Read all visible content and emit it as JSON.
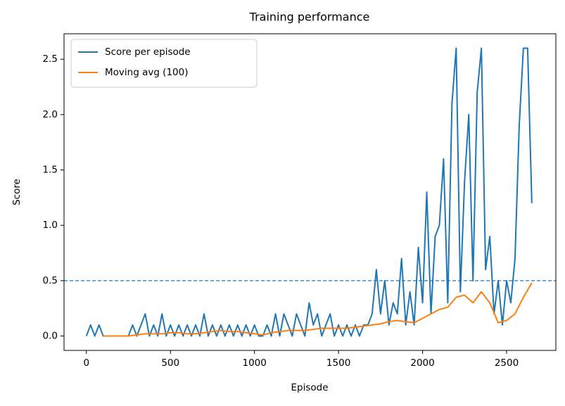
{
  "chart_data": {
    "type": "line",
    "title": "Training performance",
    "x_label": "Episode",
    "y_label": "Score",
    "legend": "upper left",
    "reference_line": {
      "value": 0.5,
      "color": "#1f77b4",
      "style": "dashed"
    },
    "xlim": [
      -133,
      2793
    ],
    "ylim": [
      -0.13,
      2.73
    ],
    "xticks": [
      0,
      500,
      1000,
      1500,
      2000,
      2500
    ],
    "yticks": [
      {
        "value": 0,
        "label": "0.0"
      },
      0.5,
      {
        "value": 1,
        "label": "1.0"
      },
      1.5,
      {
        "value": 2,
        "label": "2.0"
      },
      2.5
    ],
    "series": [
      {
        "name": "Score per episode",
        "color": "#1f77b4",
        "x": [
          0,
          25,
          50,
          75,
          100,
          125,
          150,
          175,
          200,
          225,
          250,
          275,
          300,
          325,
          350,
          375,
          400,
          425,
          450,
          475,
          500,
          525,
          550,
          575,
          600,
          625,
          650,
          675,
          700,
          725,
          750,
          775,
          800,
          825,
          850,
          875,
          900,
          925,
          950,
          975,
          1000,
          1025,
          1050,
          1075,
          1100,
          1125,
          1150,
          1175,
          1200,
          1225,
          1250,
          1275,
          1300,
          1325,
          1350,
          1375,
          1400,
          1425,
          1450,
          1475,
          1500,
          1525,
          1550,
          1575,
          1600,
          1625,
          1650,
          1675,
          1700,
          1725,
          1750,
          1775,
          1800,
          1825,
          1850,
          1875,
          1900,
          1925,
          1950,
          1975,
          2000,
          2025,
          2050,
          2075,
          2100,
          2125,
          2150,
          2175,
          2200,
          2225,
          2250,
          2275,
          2300,
          2325,
          2350,
          2375,
          2400,
          2425,
          2450,
          2475,
          2500,
          2525,
          2550,
          2575,
          2600,
          2625,
          2650
        ],
        "values": [
          0,
          0.1,
          0,
          0.1,
          0,
          0,
          0,
          0,
          0,
          0,
          0,
          0.1,
          0,
          0.1,
          0.2,
          0,
          0.1,
          0,
          0.2,
          0,
          0.1,
          0,
          0.1,
          0,
          0.1,
          0,
          0.1,
          0,
          0.2,
          0,
          0.1,
          0,
          0.1,
          0,
          0.1,
          0,
          0.1,
          0,
          0.1,
          0,
          0.1,
          0,
          0,
          0.1,
          0,
          0.2,
          0,
          0.2,
          0.1,
          0,
          0.2,
          0.1,
          0,
          0.3,
          0.1,
          0.2,
          0,
          0.1,
          0.2,
          0,
          0.1,
          0,
          0.1,
          0,
          0.1,
          0,
          0.1,
          0.1,
          0.2,
          0.6,
          0.2,
          0.5,
          0.1,
          0.3,
          0.2,
          0.7,
          0.1,
          0.4,
          0.1,
          0.8,
          0.3,
          1.3,
          0.2,
          0.9,
          1.0,
          1.6,
          0.3,
          2.1,
          2.6,
          0.4,
          1.4,
          2.0,
          0.5,
          2.2,
          2.6,
          0.6,
          0.9,
          0.2,
          0.5,
          0.1,
          0.5,
          0.3,
          0.7,
          1.9,
          2.6,
          2.6,
          1.2
        ]
      },
      {
        "name": "Moving avg (100)",
        "color": "#ff7f0e",
        "x": [
          100,
          150,
          200,
          250,
          300,
          350,
          400,
          450,
          500,
          550,
          600,
          650,
          700,
          750,
          800,
          850,
          900,
          950,
          1000,
          1050,
          1100,
          1150,
          1200,
          1250,
          1300,
          1350,
          1400,
          1450,
          1500,
          1550,
          1600,
          1650,
          1700,
          1750,
          1800,
          1850,
          1900,
          1950,
          2000,
          2050,
          2100,
          2150,
          2200,
          2250,
          2300,
          2350,
          2400,
          2450,
          2500,
          2550,
          2600,
          2650
        ],
        "values": [
          0,
          0,
          0,
          0,
          0.01,
          0.02,
          0.02,
          0.02,
          0.03,
          0.03,
          0.02,
          0.02,
          0.03,
          0.04,
          0.05,
          0.04,
          0.04,
          0.03,
          0.02,
          0.01,
          0.03,
          0.04,
          0.05,
          0.05,
          0.05,
          0.06,
          0.07,
          0.07,
          0.07,
          0.07,
          0.08,
          0.09,
          0.1,
          0.11,
          0.13,
          0.14,
          0.13,
          0.12,
          0.16,
          0.2,
          0.24,
          0.26,
          0.35,
          0.37,
          0.3,
          0.4,
          0.3,
          0.12,
          0.14,
          0.2,
          0.35,
          0.48
        ]
      }
    ]
  }
}
